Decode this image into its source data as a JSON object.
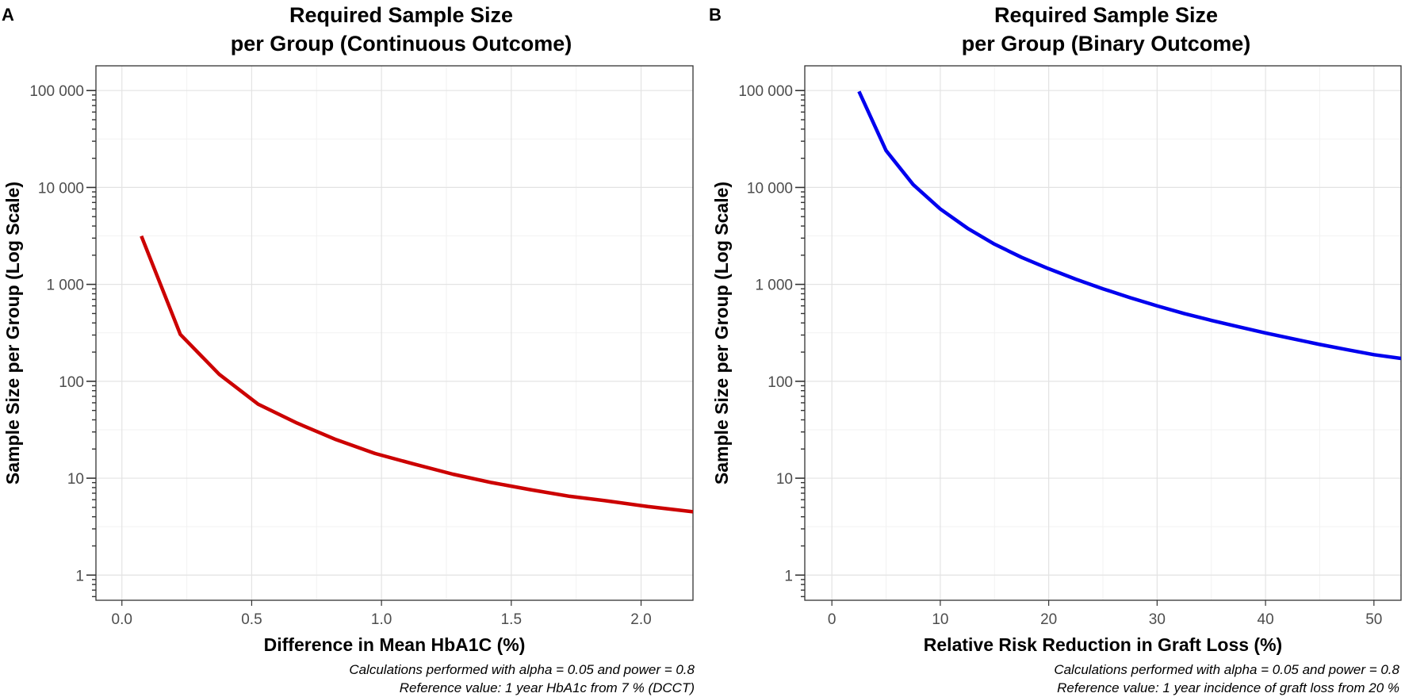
{
  "chart_data": [
    {
      "type": "line",
      "panel_label": "A",
      "title_lines": [
        "Required Sample Size",
        "per Group (Continuous Outcome)"
      ],
      "xlabel": "Difference in Mean HbA1C (%)",
      "ylabel": "Sample Size per Group (Log Scale)",
      "x_ticks": [
        0.0,
        0.5,
        1.0,
        1.5,
        2.0
      ],
      "x_tick_labels": [
        "0.0",
        "0.5",
        "1.0",
        "1.5",
        "2.0"
      ],
      "xlim": [
        -0.1,
        2.2
      ],
      "y_scale": "log",
      "y_ticks": [
        1,
        10,
        100,
        1000,
        10000,
        100000
      ],
      "y_tick_labels": [
        "1",
        "10",
        "100",
        "1 000",
        "10 000",
        "100 000"
      ],
      "ylim": [
        0.55,
        180000
      ],
      "grid": true,
      "line_color": "#cc0000",
      "series": [
        {
          "x": [
            0.075,
            0.225,
            0.375,
            0.525,
            0.675,
            0.825,
            0.975,
            1.125,
            1.275,
            1.425,
            1.575,
            1.725,
            1.875,
            2.025,
            2.2
          ],
          "y": [
            3150,
            305,
            118,
            58,
            37,
            25,
            18,
            14,
            11,
            9,
            7.6,
            6.5,
            5.8,
            5.1,
            4.5
          ]
        }
      ],
      "caption_lines": [
        "Calculations performed with alpha = 0.05 and power = 0.8",
        "Reference value: 1 year HbA1c from 7 % (DCCT)"
      ]
    },
    {
      "type": "line",
      "panel_label": "B",
      "title_lines": [
        "Required Sample Size",
        "per Group (Binary Outcome)"
      ],
      "xlabel": "Relative Risk Reduction in Graft Loss (%)",
      "ylabel": "Sample Size per Group (Log Scale)",
      "x_ticks": [
        0,
        10,
        20,
        30,
        40,
        50
      ],
      "x_tick_labels": [
        "0",
        "10",
        "20",
        "30",
        "40",
        "50"
      ],
      "xlim": [
        -2.5,
        52.5
      ],
      "y_scale": "log",
      "y_ticks": [
        1,
        10,
        100,
        1000,
        10000,
        100000
      ],
      "y_tick_labels": [
        "1",
        "10",
        "100",
        "1 000",
        "10 000",
        "100 000"
      ],
      "ylim": [
        0.55,
        180000
      ],
      "grid": true,
      "line_color": "#0000ee",
      "series": [
        {
          "x": [
            2.5,
            5,
            7.5,
            10,
            12.5,
            15,
            17.5,
            20,
            22.5,
            25,
            27.5,
            30,
            32.5,
            35,
            37.5,
            40,
            42.5,
            45,
            47.5,
            50,
            52.5
          ],
          "y": [
            98000,
            24000,
            10700,
            6000,
            3800,
            2600,
            1900,
            1450,
            1130,
            900,
            730,
            600,
            500,
            425,
            365,
            315,
            275,
            240,
            212,
            188,
            172
          ]
        }
      ],
      "caption_lines": [
        "Calculations performed with alpha = 0.05 and power = 0.8",
        "Reference value: 1 year incidence of graft loss from 20 %"
      ]
    }
  ]
}
